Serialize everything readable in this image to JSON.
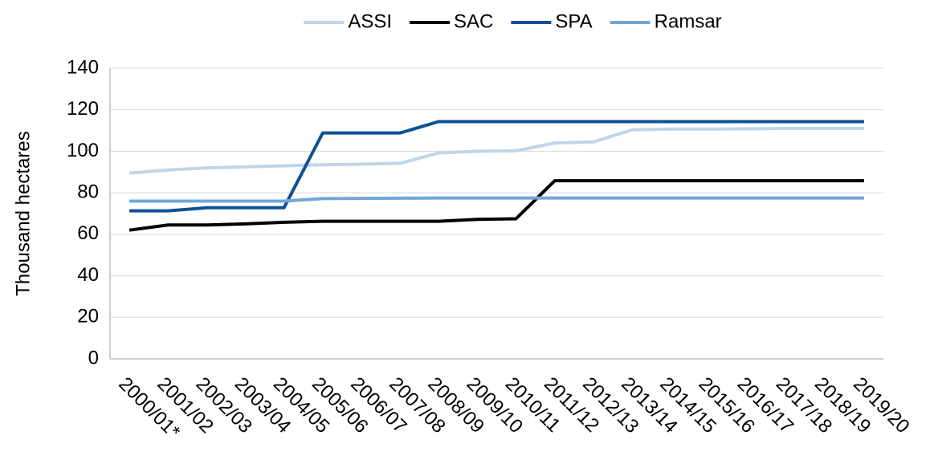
{
  "chart_data": {
    "type": "line",
    "y_label": "Thousand hectares",
    "categories": [
      "2000/01*",
      "2001/02",
      "2002/03",
      "2003/04",
      "2004/05",
      "2005/06",
      "2006/07",
      "2007/08",
      "2008/09",
      "2009/10",
      "2010/11",
      "2011/12",
      "2012/13",
      "2013/14",
      "2014/15",
      "2015/16",
      "2016/17",
      "2017/18",
      "2018/19",
      "2019/20"
    ],
    "series": [
      {
        "name": "ASSI",
        "color": "#bfd5ea",
        "values": [
          89.5,
          91,
          92,
          92.5,
          93,
          93.5,
          93.8,
          94.2,
          99.2,
          100,
          100.2,
          104,
          104.5,
          110.3,
          110.7,
          110.7,
          110.8,
          111,
          111,
          111
        ]
      },
      {
        "name": "SAC",
        "color": "#000000",
        "values": [
          62,
          64.5,
          64.5,
          65,
          65.8,
          66.3,
          66.3,
          66.3,
          66.3,
          67.2,
          67.5,
          85.8,
          85.8,
          85.8,
          85.8,
          85.8,
          85.8,
          85.8,
          85.8,
          85.8
        ]
      },
      {
        "name": "SPA",
        "color": "#0f5196",
        "values": [
          71.3,
          71.3,
          72.8,
          72.8,
          72.8,
          108.8,
          108.8,
          108.8,
          114.3,
          114.3,
          114.3,
          114.3,
          114.3,
          114.3,
          114.3,
          114.3,
          114.3,
          114.3,
          114.3,
          114.3
        ]
      },
      {
        "name": "Ramsar",
        "color": "#6fa8d6",
        "values": [
          76,
          76,
          76,
          76,
          76,
          77.2,
          77.3,
          77.4,
          77.5,
          77.5,
          77.5,
          77.5,
          77.5,
          77.5,
          77.5,
          77.5,
          77.5,
          77.5,
          77.5,
          77.5
        ]
      }
    ],
    "ylim": [
      0,
      140
    ],
    "yticks": [
      0,
      20,
      40,
      60,
      80,
      100,
      120,
      140
    ],
    "grid": true,
    "legend": "top"
  }
}
